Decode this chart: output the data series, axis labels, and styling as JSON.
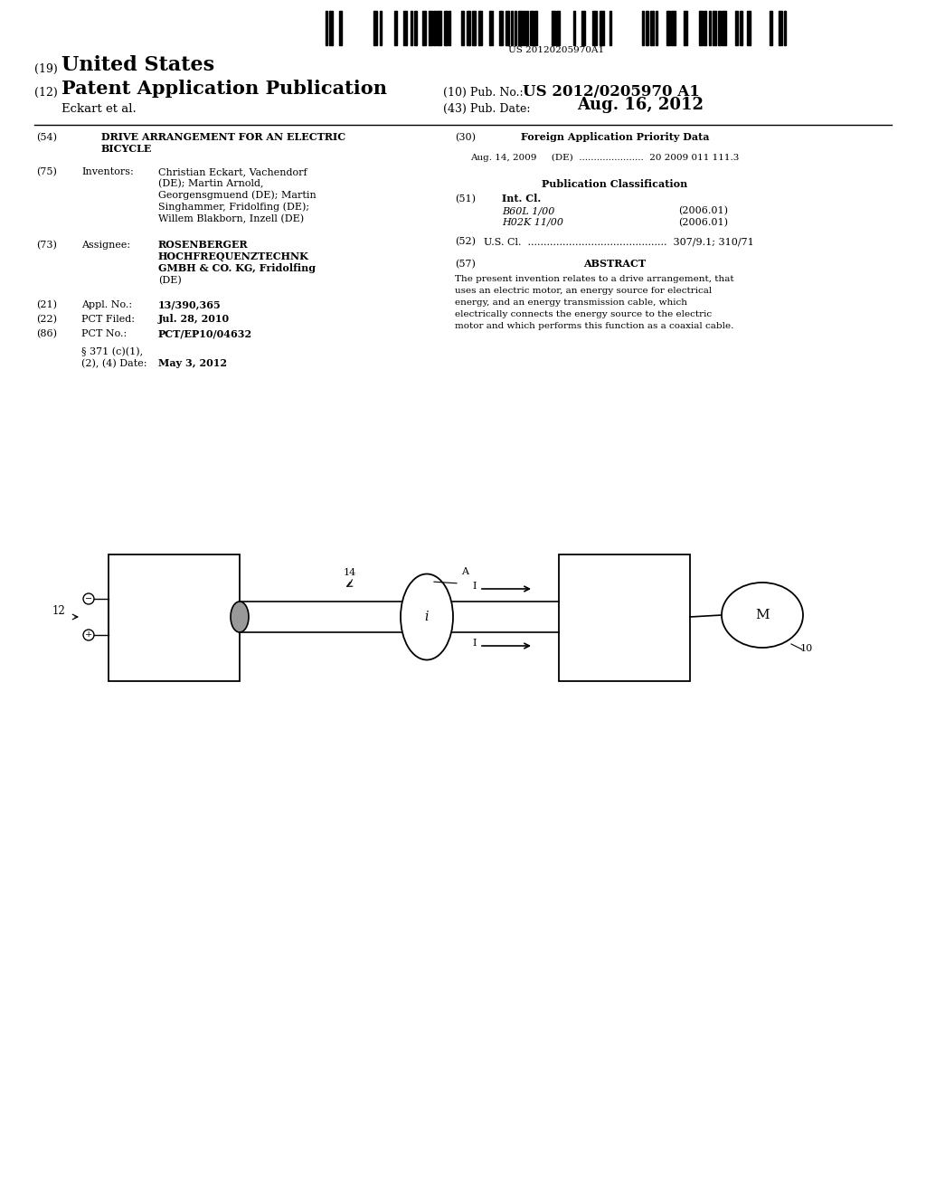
{
  "bg_color": "#ffffff",
  "barcode_text": "US 20120205970A1",
  "title_19": "(19) United States",
  "title_12": "(12) Patent Application Publication",
  "pub_no_label": "(10) Pub. No.: US 2012/0205970 A1",
  "pub_no_label_plain": "(10) Pub. No.:",
  "pub_no_value": "US 2012/0205970 A1",
  "inventor_label": "Eckart et al.",
  "pub_date_label": "(43) Pub. Date:",
  "pub_date_value": "Aug. 16, 2012",
  "section54_title_line1": "DRIVE ARRANGEMENT FOR AN ELECTRIC",
  "section54_title_line2": "BICYCLE",
  "section75_label": "Inventors:",
  "section75_lines": [
    "Christian Eckart, Vachendorf",
    "(DE); Martin Arnold,",
    "Georgensgmuend (DE); Martin",
    "Singhammer, Fridolfing (DE);",
    "Willem Blakborn, Inzell (DE)"
  ],
  "section73_label": "Assignee:",
  "section73_lines": [
    "ROSENBERGER",
    "HOCHFREQUENZTECHNK",
    "GMBH & CO. KG, Fridolfing",
    "(DE)"
  ],
  "section21_label": "Appl. No.:",
  "section21_value": "13/390,365",
  "section22_label": "PCT Filed:",
  "section22_value": "Jul. 28, 2010",
  "section86_label": "PCT No.:",
  "section86_value": "PCT/EP10/04632",
  "section371_line1": "§ 371 (c)(1),",
  "section371_line2": "(2), (4) Date:",
  "section371_value": "May 3, 2012",
  "section30_title": "Foreign Application Priority Data",
  "section30_data": "Aug. 14, 2009     (DE)  ......................  20 2009 011 111.3",
  "pub_class_title": "Publication Classification",
  "section51_label": "Int. Cl.",
  "section51_b60l": "B60L 1/00",
  "section51_b60l_year": "(2006.01)",
  "section51_h02k": "H02K 11/00",
  "section51_h02k_year": "(2006.01)",
  "section52_dots": "U.S. Cl.  ............................................  307/9.1; 310/71",
  "section57_title": "ABSTRACT",
  "section57_text": "The present invention relates to a drive arrangement, that uses an electric motor, an energy source for electrical energy, and an energy transmission cable, which electrically connects the energy source to the electric motor and which performs this function as a coaxial cable."
}
